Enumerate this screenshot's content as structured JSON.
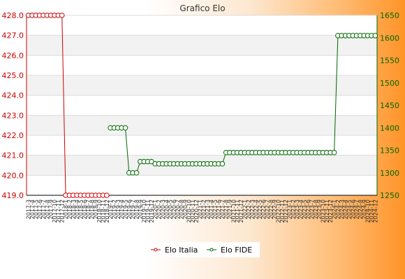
{
  "chart_data": {
    "type": "line",
    "title": "Grafico Elo",
    "x": [
      "2017-3",
      "2017-4",
      "2017-5",
      "2017-6",
      "2017-7",
      "2017-8",
      "2017-9",
      "2017-10",
      "2017-11",
      "2017-12",
      "2018-1",
      "2018-2",
      "2018-3",
      "2018-4",
      "2018-5",
      "2018-6",
      "2018-7",
      "2018-8",
      "2018-9",
      "2018-10",
      "2018-11",
      "2018-12",
      "2019-1",
      "2019-2",
      "2019-3",
      "2019-4",
      "2019-5",
      "2019-6",
      "2019-7",
      "2019-8",
      "2019-9",
      "2019-10",
      "2019-11",
      "2019-12",
      "2020-1",
      "2020-2",
      "2020-3",
      "2020-4",
      "2020-5",
      "2020-6",
      "2020-7",
      "2020-8",
      "2020-9",
      "2020-10",
      "2020-11",
      "2020-12",
      "2021-1",
      "2021-2",
      "2021-3",
      "2021-4",
      "2021-5",
      "2021-6",
      "2021-7",
      "2021-8",
      "2021-9",
      "2021-10",
      "2021-11",
      "2021-12",
      "2022-1",
      "2022-2",
      "2022-3",
      "2022-4",
      "2022-5",
      "2022-6",
      "2022-7",
      "2022-8",
      "2022-9",
      "2022-10",
      "2022-11",
      "2022-12",
      "2023-1",
      "2023-2",
      "2023-3",
      "2023-4",
      "2023-5",
      "2023-6",
      "2023-7",
      "2023-8",
      "2023-9",
      "2023-10",
      "2023-11",
      "2023-12",
      "2024-1",
      "2024-2",
      "2024-3",
      "2024-4",
      "2024-5",
      "2024-6",
      "2024-7",
      "2024-8",
      "2024-9",
      "2024-10",
      "2024-11",
      "2024-12"
    ],
    "series": [
      {
        "name": "Elo Italia",
        "axis": "left",
        "color": "#cc0000",
        "values": [
          428,
          428,
          428,
          428,
          428,
          428,
          428,
          428,
          428,
          428,
          419,
          419,
          419,
          419,
          419,
          419,
          419,
          419,
          419,
          419,
          419,
          419,
          null,
          null,
          null,
          null,
          null,
          null,
          null,
          null,
          null,
          null,
          null,
          null,
          null,
          null,
          null,
          null,
          null,
          null,
          null,
          null,
          null,
          null,
          null,
          null,
          null,
          null,
          null,
          null,
          null,
          null,
          null,
          null,
          null,
          null,
          null,
          null,
          null,
          null,
          null,
          null,
          null,
          null,
          null,
          null,
          null,
          null,
          null,
          null,
          null,
          null,
          null,
          null,
          null,
          null,
          null,
          null,
          null,
          null,
          null,
          null,
          null,
          null,
          null,
          null,
          null,
          null,
          null,
          null,
          null,
          null,
          null,
          null
        ]
      },
      {
        "name": "Elo FIDE",
        "axis": "right",
        "color": "#006600",
        "values": [
          null,
          null,
          null,
          null,
          null,
          null,
          null,
          null,
          null,
          null,
          null,
          null,
          null,
          null,
          null,
          null,
          null,
          null,
          null,
          null,
          null,
          null,
          1400,
          1400,
          1400,
          1400,
          1400,
          1300,
          1300,
          1300,
          1325,
          1325,
          1325,
          1325,
          1320,
          1320,
          1320,
          1320,
          1320,
          1320,
          1320,
          1320,
          1320,
          1320,
          1320,
          1320,
          1320,
          1320,
          1320,
          1320,
          1320,
          1320,
          1320,
          1345,
          1345,
          1345,
          1345,
          1345,
          1345,
          1345,
          1345,
          1345,
          1345,
          1345,
          1345,
          1345,
          1345,
          1345,
          1345,
          1345,
          1345,
          1345,
          1345,
          1345,
          1345,
          1345,
          1345,
          1345,
          1345,
          1345,
          1345,
          1345,
          1345,
          1605,
          1605,
          1605,
          1605,
          1605,
          1605,
          1605,
          1605,
          1605,
          1605,
          1605
        ]
      }
    ],
    "y_left": {
      "min": 419,
      "max": 428,
      "ticks": [
        "419.0",
        "420.0",
        "421.0",
        "422.0",
        "423.0",
        "424.0",
        "425.0",
        "426.0",
        "427.0",
        "428.0"
      ]
    },
    "y_right": {
      "min": 1250,
      "max": 1650,
      "ticks": [
        "1250",
        "1300",
        "1350",
        "1400",
        "1450",
        "1500",
        "1550",
        "1600",
        "1650"
      ]
    },
    "grid": true,
    "legend_position": "bottom"
  }
}
